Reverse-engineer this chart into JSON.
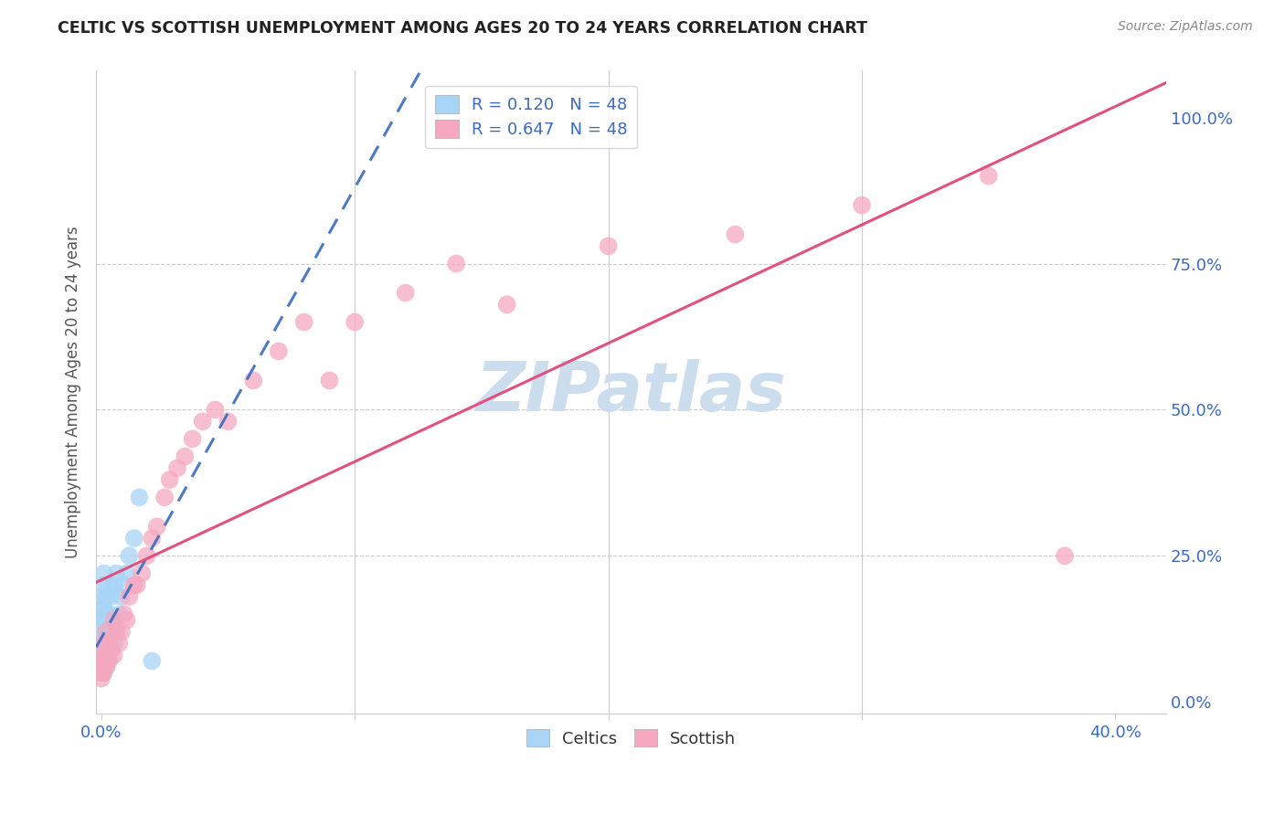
{
  "title": "CELTIC VS SCOTTISH UNEMPLOYMENT AMONG AGES 20 TO 24 YEARS CORRELATION CHART",
  "source": "Source: ZipAtlas.com",
  "ylabel": "Unemployment Among Ages 20 to 24 years",
  "xlim": [
    -0.002,
    0.42
  ],
  "ylim": [
    -0.02,
    1.08
  ],
  "celtics_R": "0.120",
  "celtics_N": "48",
  "scottish_R": "0.647",
  "scottish_N": "48",
  "celtics_color": "#a8d4f5",
  "scottish_color": "#f5a8c0",
  "celtics_line_color": "#3a6bbf",
  "scottish_line_color": "#e05080",
  "watermark": "ZIPatlas",
  "watermark_color": "#ccdded",
  "celtics_x": [
    0.0,
    0.0,
    0.0,
    0.0,
    0.0,
    0.0,
    0.0,
    0.0,
    0.0,
    0.0,
    0.001,
    0.001,
    0.001,
    0.001,
    0.001,
    0.001,
    0.001,
    0.001,
    0.001,
    0.001,
    0.002,
    0.002,
    0.002,
    0.002,
    0.002,
    0.002,
    0.002,
    0.003,
    0.003,
    0.003,
    0.003,
    0.003,
    0.004,
    0.004,
    0.004,
    0.005,
    0.005,
    0.005,
    0.006,
    0.006,
    0.007,
    0.008,
    0.009,
    0.01,
    0.011,
    0.013,
    0.015,
    0.02
  ],
  "celtics_y": [
    0.05,
    0.06,
    0.07,
    0.07,
    0.08,
    0.1,
    0.12,
    0.14,
    0.16,
    0.18,
    0.05,
    0.06,
    0.08,
    0.09,
    0.1,
    0.12,
    0.14,
    0.16,
    0.2,
    0.22,
    0.06,
    0.07,
    0.08,
    0.1,
    0.12,
    0.15,
    0.18,
    0.08,
    0.1,
    0.12,
    0.15,
    0.2,
    0.1,
    0.13,
    0.18,
    0.1,
    0.14,
    0.2,
    0.12,
    0.22,
    0.15,
    0.18,
    0.2,
    0.22,
    0.25,
    0.28,
    0.35,
    0.07
  ],
  "scottish_x": [
    0.0,
    0.0,
    0.0,
    0.0,
    0.001,
    0.001,
    0.001,
    0.002,
    0.002,
    0.002,
    0.003,
    0.003,
    0.004,
    0.005,
    0.005,
    0.006,
    0.007,
    0.008,
    0.009,
    0.01,
    0.011,
    0.013,
    0.014,
    0.016,
    0.018,
    0.02,
    0.022,
    0.025,
    0.027,
    0.03,
    0.033,
    0.036,
    0.04,
    0.045,
    0.05,
    0.06,
    0.07,
    0.08,
    0.09,
    0.1,
    0.12,
    0.14,
    0.16,
    0.2,
    0.25,
    0.3,
    0.35,
    0.38
  ],
  "scottish_y": [
    0.04,
    0.05,
    0.06,
    0.08,
    0.05,
    0.07,
    0.1,
    0.06,
    0.08,
    0.12,
    0.07,
    0.1,
    0.09,
    0.08,
    0.14,
    0.12,
    0.1,
    0.12,
    0.15,
    0.14,
    0.18,
    0.2,
    0.2,
    0.22,
    0.25,
    0.28,
    0.3,
    0.35,
    0.38,
    0.4,
    0.42,
    0.45,
    0.48,
    0.5,
    0.48,
    0.55,
    0.6,
    0.65,
    0.55,
    0.65,
    0.7,
    0.75,
    0.68,
    0.78,
    0.8,
    0.85,
    0.9,
    0.25
  ]
}
